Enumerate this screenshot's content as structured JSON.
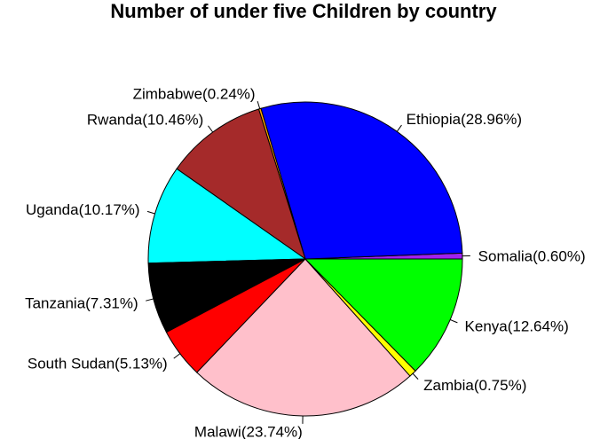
{
  "chart_data": {
    "type": "pie",
    "title": "Number of under five Children by country",
    "start": "Somalia",
    "direction": "counterclockwise",
    "slices": [
      {
        "label": "Somalia(0.60%)",
        "value": 0.6,
        "color": "#A020F0"
      },
      {
        "label": "Ethiopia(28.96%)",
        "value": 28.96,
        "color": "#0000FF"
      },
      {
        "label": "Zimbabwe(0.24%)",
        "value": 0.24,
        "color": "#FFA500"
      },
      {
        "label": "Rwanda(10.46%)",
        "value": 10.46,
        "color": "#A52A2A"
      },
      {
        "label": "Uganda(10.17%)",
        "value": 10.17,
        "color": "#00FFFF"
      },
      {
        "label": "Tanzania(7.31%)",
        "value": 7.31,
        "color": "#000000"
      },
      {
        "label": "South Sudan(5.13%)",
        "value": 5.13,
        "color": "#FF0000"
      },
      {
        "label": "Malawi(23.74%)",
        "value": 23.74,
        "color": "#FFC0CB"
      },
      {
        "label": "Zambia(0.75%)",
        "value": 0.75,
        "color": "#FFFF00"
      },
      {
        "label": "Kenya(12.64%)",
        "value": 12.64,
        "color": "#00FF00"
      }
    ]
  }
}
